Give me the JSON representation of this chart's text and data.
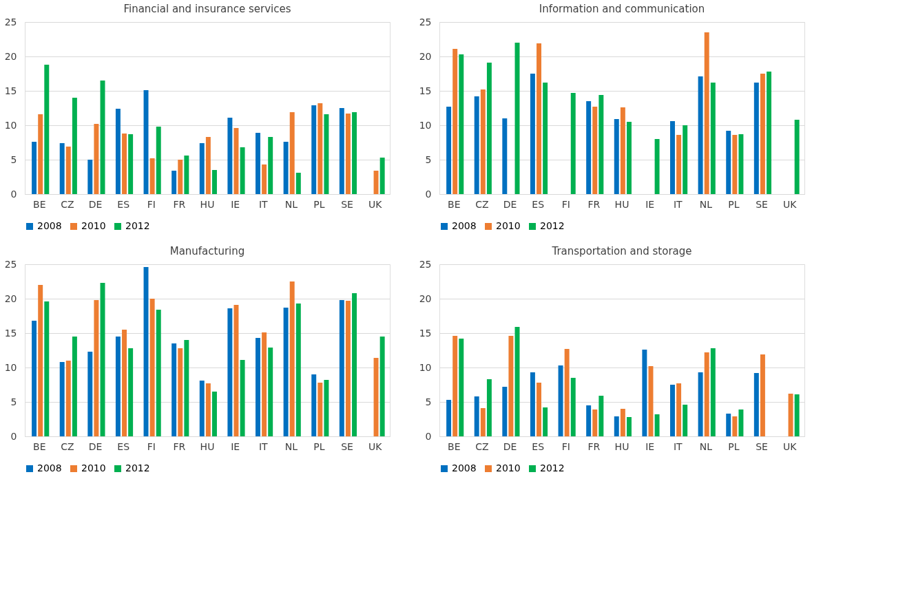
{
  "chart_data": [
    {
      "type": "bar",
      "title": "Financial and insurance services",
      "categories": [
        "BE",
        "CZ",
        "DE",
        "ES",
        "FI",
        "FR",
        "HU",
        "IE",
        "IT",
        "NL",
        "PL",
        "SE",
        "UK"
      ],
      "ylim": [
        0,
        25
      ],
      "yticks": [
        0,
        5,
        10,
        15,
        20,
        25
      ],
      "grid": "y",
      "legend": "bottom",
      "series": [
        {
          "name": "2008",
          "color": "#0070c0",
          "values": [
            7.6,
            7.4,
            5.0,
            12.4,
            15.1,
            3.4,
            7.4,
            11.1,
            8.9,
            7.6,
            12.9,
            12.5,
            null
          ]
        },
        {
          "name": "2010",
          "color": "#ed7d31",
          "values": [
            11.6,
            6.9,
            10.2,
            8.8,
            5.2,
            5.0,
            8.3,
            9.6,
            4.3,
            11.9,
            13.2,
            11.7,
            3.4
          ]
        },
        {
          "name": "2012",
          "color": "#00b050",
          "values": [
            18.8,
            14.0,
            16.5,
            8.7,
            9.8,
            5.6,
            3.5,
            6.8,
            8.3,
            3.1,
            11.6,
            11.9,
            5.3
          ]
        }
      ]
    },
    {
      "type": "bar",
      "title": "Information and communication",
      "categories": [
        "BE",
        "CZ",
        "DE",
        "ES",
        "FI",
        "FR",
        "HU",
        "IE",
        "IT",
        "NL",
        "PL",
        "SE",
        "UK"
      ],
      "ylim": [
        0,
        25
      ],
      "yticks": [
        0,
        5,
        10,
        15,
        20,
        25
      ],
      "grid": "y",
      "legend": "bottom",
      "series": [
        {
          "name": "2008",
          "color": "#0070c0",
          "values": [
            12.7,
            14.2,
            11.0,
            17.5,
            null,
            13.5,
            10.9,
            null,
            10.6,
            17.1,
            9.2,
            16.2,
            null
          ]
        },
        {
          "name": "2010",
          "color": "#ed7d31",
          "values": [
            21.1,
            15.2,
            null,
            21.9,
            null,
            12.7,
            12.6,
            null,
            8.6,
            23.5,
            8.6,
            17.5,
            null
          ]
        },
        {
          "name": "2012",
          "color": "#00b050",
          "values": [
            20.3,
            19.1,
            22.0,
            16.2,
            14.7,
            14.4,
            10.5,
            8.0,
            10.0,
            16.2,
            8.7,
            17.8,
            10.8
          ]
        }
      ]
    },
    {
      "type": "bar",
      "title": "Manufacturing",
      "categories": [
        "BE",
        "CZ",
        "DE",
        "ES",
        "FI",
        "FR",
        "HU",
        "IE",
        "IT",
        "NL",
        "PL",
        "SE",
        "UK"
      ],
      "ylim": [
        0,
        25
      ],
      "yticks": [
        0,
        5,
        10,
        15,
        20,
        25
      ],
      "grid": "y",
      "legend": "bottom",
      "series": [
        {
          "name": "2008",
          "color": "#0070c0",
          "values": [
            16.8,
            10.8,
            12.3,
            14.5,
            24.6,
            13.5,
            8.1,
            18.6,
            14.3,
            18.7,
            9.0,
            19.8,
            null
          ]
        },
        {
          "name": "2010",
          "color": "#ed7d31",
          "values": [
            22.0,
            11.0,
            19.8,
            15.5,
            20.0,
            12.8,
            7.7,
            19.1,
            15.1,
            22.5,
            7.8,
            19.7,
            11.4
          ]
        },
        {
          "name": "2012",
          "color": "#00b050",
          "values": [
            19.6,
            14.5,
            22.3,
            12.8,
            18.4,
            14.0,
            6.5,
            11.1,
            12.9,
            19.3,
            8.2,
            20.8,
            14.5
          ]
        }
      ]
    },
    {
      "type": "bar",
      "title": "Transportation and storage",
      "categories": [
        "BE",
        "CZ",
        "DE",
        "ES",
        "FI",
        "FR",
        "HU",
        "IE",
        "IT",
        "NL",
        "PL",
        "SE",
        "UK"
      ],
      "ylim": [
        0,
        25
      ],
      "yticks": [
        0,
        5,
        10,
        15,
        20,
        25
      ],
      "grid": "y",
      "legend": "bottom",
      "series": [
        {
          "name": "2008",
          "color": "#0070c0",
          "values": [
            5.3,
            5.8,
            7.2,
            9.3,
            10.3,
            4.5,
            2.9,
            12.6,
            7.5,
            9.3,
            3.3,
            9.2,
            null
          ]
        },
        {
          "name": "2010",
          "color": "#ed7d31",
          "values": [
            14.6,
            4.1,
            14.6,
            7.8,
            12.7,
            3.9,
            4.0,
            10.2,
            7.7,
            12.2,
            2.9,
            11.9,
            6.2
          ]
        },
        {
          "name": "2012",
          "color": "#00b050",
          "values": [
            14.2,
            8.3,
            15.9,
            4.2,
            8.5,
            5.9,
            2.8,
            3.2,
            4.6,
            12.8,
            3.9,
            null,
            6.1
          ]
        }
      ]
    }
  ]
}
